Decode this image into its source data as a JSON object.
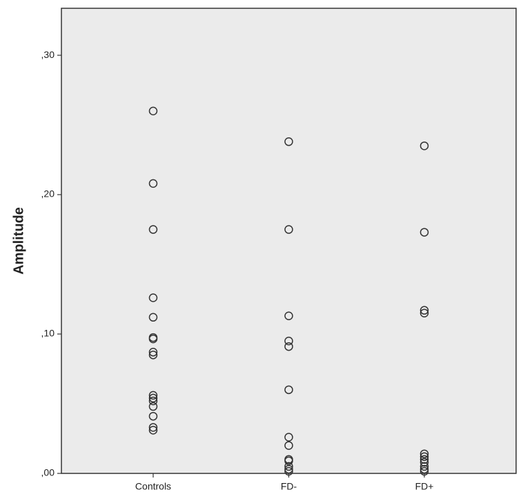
{
  "chart_data": {
    "type": "strip",
    "y_label": "Amplitude",
    "categories": [
      "Controls",
      "FD-",
      "FD+"
    ],
    "values": [
      [
        0.26,
        0.208,
        0.175,
        0.126,
        0.112,
        0.0975,
        0.0965,
        0.087,
        0.085,
        0.056,
        0.054,
        0.052,
        0.048,
        0.041,
        0.033,
        0.031
      ],
      [
        0.238,
        0.175,
        0.113,
        0.095,
        0.091,
        0.06,
        0.026,
        0.02,
        0.01,
        0.009,
        0.005,
        0.003,
        0.0015
      ],
      [
        0.235,
        0.173,
        0.117,
        0.115,
        0.014,
        0.012,
        0.01,
        0.008,
        0.005,
        0.003,
        0.0015
      ]
    ],
    "color": "#333333",
    "ylim": [
      0,
      0.3337
    ],
    "yticks": [
      {
        "value": 0,
        "label": ",00"
      },
      {
        "value": 0.1,
        "label": ",10"
      },
      {
        "value": 0.2,
        "label": ",20"
      },
      {
        "value": 0.3,
        "label": ",30"
      }
    ]
  }
}
